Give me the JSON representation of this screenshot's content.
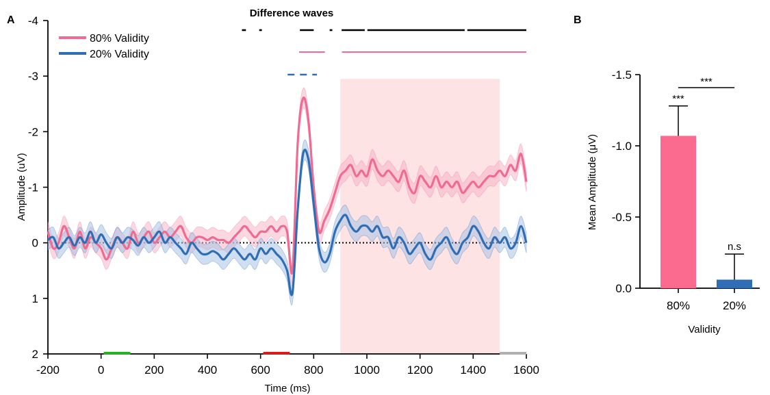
{
  "colors": {
    "pink": "#f06a92",
    "pink_band": "#f6b6c9",
    "blue": "#2f6db5",
    "blue_band": "#a9c3e6",
    "shade": "#fde3e4",
    "bar_pink": "#fb6a8f",
    "bar_blue": "#2f6db5",
    "green": "#22b222",
    "red": "#d81a1a",
    "gray": "#b0b0b0"
  },
  "chart_data": [
    {
      "panel_label": "A",
      "type": "line",
      "title": "Difference waves",
      "xlabel": "Time (ms)",
      "ylabel": "Amplitude (uV)",
      "xlim": [
        -200,
        1600
      ],
      "ylim_top_to_bottom": [
        -4,
        2
      ],
      "y_inverted": true,
      "xticks": [
        "-200",
        "0",
        "200",
        "400",
        "600",
        "800",
        "1000",
        "1200",
        "1400",
        "1600"
      ],
      "xtick_values": [
        -200,
        0,
        200,
        400,
        600,
        800,
        1000,
        1200,
        1400,
        1600
      ],
      "yticks": [
        "-4",
        "-3",
        "-2",
        "-1",
        "0",
        "1",
        "2"
      ],
      "ytick_values": [
        -4,
        -3,
        -2,
        -1,
        0,
        1,
        2
      ],
      "legend": [
        "80% Validity",
        "20% Validity"
      ],
      "legend_position": "top-left",
      "shaded_window_ms": [
        900,
        1500
      ],
      "time_markers": [
        {
          "color": "green",
          "range": [
            10,
            110
          ]
        },
        {
          "color": "red",
          "range": [
            610,
            710
          ]
        },
        {
          "color": "gray",
          "range": [
            1500,
            1600
          ]
        }
      ],
      "significance_bars": {
        "difference": [
          [
            530,
            545
          ],
          [
            595,
            605
          ],
          [
            748,
            800
          ],
          [
            860,
            870
          ],
          [
            905,
            992
          ],
          [
            1002,
            1368
          ],
          [
            1378,
            1600
          ]
        ],
        "pink": [
          [
            745,
            842
          ],
          [
            906,
            1600
          ]
        ],
        "blue_dashed": [
          [
            702,
            812
          ]
        ]
      },
      "series": [
        {
          "name": "80% Validity",
          "x": [
            -200,
            -180,
            -160,
            -140,
            -120,
            -100,
            -80,
            -60,
            -40,
            -20,
            0,
            20,
            40,
            60,
            80,
            100,
            120,
            140,
            160,
            180,
            200,
            220,
            240,
            260,
            280,
            300,
            320,
            340,
            360,
            380,
            400,
            420,
            440,
            460,
            480,
            500,
            520,
            540,
            560,
            580,
            600,
            620,
            640,
            660,
            680,
            700,
            720,
            740,
            760,
            780,
            800,
            820,
            840,
            860,
            880,
            900,
            920,
            940,
            960,
            980,
            1000,
            1020,
            1040,
            1060,
            1080,
            1100,
            1120,
            1140,
            1160,
            1180,
            1200,
            1220,
            1240,
            1260,
            1280,
            1300,
            1320,
            1340,
            1360,
            1380,
            1400,
            1420,
            1440,
            1460,
            1480,
            1500,
            1520,
            1540,
            1560,
            1580,
            1600
          ],
          "y": [
            -0.2,
            0.1,
            0.0,
            -0.3,
            -0.1,
            0.1,
            -0.2,
            0.1,
            -0.1,
            0.0,
            0.1,
            0.3,
            0.1,
            -0.1,
            0.0,
            0.1,
            -0.2,
            0.0,
            -0.1,
            -0.2,
            0.0,
            -0.1,
            -0.2,
            -0.1,
            -0.2,
            -0.3,
            -0.1,
            0.0,
            -0.1,
            -0.1,
            -0.05,
            -0.1,
            -0.05,
            -0.05,
            0.0,
            -0.1,
            -0.2,
            -0.3,
            -0.2,
            -0.1,
            -0.2,
            -0.2,
            -0.3,
            -0.2,
            -0.3,
            -0.2,
            0.5,
            -1.8,
            -2.6,
            -2.2,
            -1.0,
            -0.2,
            -0.4,
            -0.6,
            -0.9,
            -1.2,
            -1.3,
            -1.4,
            -1.2,
            -1.3,
            -1.2,
            -1.5,
            -1.3,
            -1.2,
            -1.3,
            -1.2,
            -1.1,
            -1.3,
            -1.0,
            -0.9,
            -1.2,
            -1.1,
            -1.0,
            -1.2,
            -1.0,
            -1.1,
            -1.0,
            -1.1,
            -0.9,
            -1.0,
            -1.1,
            -1.0,
            -1.1,
            -1.2,
            -1.2,
            -1.3,
            -1.2,
            -1.4,
            -1.3,
            -1.6,
            -1.1
          ]
        },
        {
          "name": "20% Validity",
          "x": [
            -200,
            -180,
            -160,
            -140,
            -120,
            -100,
            -80,
            -60,
            -40,
            -20,
            0,
            20,
            40,
            60,
            80,
            100,
            120,
            140,
            160,
            180,
            200,
            220,
            240,
            260,
            280,
            300,
            320,
            340,
            360,
            380,
            400,
            420,
            440,
            460,
            480,
            500,
            520,
            540,
            560,
            580,
            600,
            620,
            640,
            660,
            680,
            700,
            720,
            740,
            760,
            780,
            800,
            820,
            840,
            860,
            880,
            900,
            920,
            940,
            960,
            980,
            1000,
            1020,
            1040,
            1060,
            1080,
            1100,
            1120,
            1140,
            1160,
            1180,
            1200,
            1220,
            1240,
            1260,
            1280,
            1300,
            1320,
            1340,
            1360,
            1380,
            1400,
            1420,
            1440,
            1460,
            1480,
            1500,
            1520,
            1540,
            1560,
            1580,
            1600
          ],
          "y": [
            -0.05,
            -0.1,
            0.1,
            0.0,
            -0.1,
            0.05,
            -0.1,
            0.0,
            -0.2,
            0.0,
            -0.15,
            0.0,
            0.1,
            -0.1,
            0.0,
            -0.1,
            -0.05,
            0.05,
            -0.1,
            0.0,
            -0.1,
            -0.2,
            0.0,
            -0.1,
            0.0,
            0.1,
            0.2,
            0.0,
            0.1,
            0.2,
            0.2,
            0.15,
            0.2,
            0.3,
            0.2,
            0.1,
            0.2,
            0.3,
            0.2,
            0.3,
            0.1,
            0.2,
            0.1,
            0.2,
            0.3,
            0.5,
            0.9,
            -0.6,
            -1.6,
            -1.5,
            -0.7,
            0.1,
            0.35,
            0.2,
            -0.2,
            -0.4,
            -0.5,
            -0.3,
            -0.2,
            -0.3,
            -0.3,
            -0.2,
            -0.3,
            -0.1,
            -0.1,
            0.1,
            -0.1,
            0.0,
            0.2,
            0.1,
            0.0,
            0.2,
            0.3,
            0.1,
            0.0,
            -0.1,
            0.1,
            0.2,
            0.0,
            -0.1,
            -0.3,
            -0.2,
            0.0,
            0.1,
            -0.1,
            0.0,
            -0.1,
            0.1,
            0.0,
            -0.3,
            0.0
          ]
        }
      ]
    },
    {
      "panel_label": "B",
      "type": "bar",
      "xlabel": "Validity",
      "ylabel": "Mean Amplitude (μV)",
      "ylim_top_to_bottom": [
        -1.5,
        0.0
      ],
      "y_inverted": true,
      "yticks": [
        "-1.5",
        "-1.0",
        "-0.5",
        "0.0"
      ],
      "ytick_values": [
        -1.5,
        -1.0,
        -0.5,
        0.0
      ],
      "categories": [
        "80%",
        "20%"
      ],
      "values": [
        -1.07,
        -0.06
      ],
      "errors": [
        0.21,
        0.18
      ],
      "labels_above": [
        "***",
        "n.s"
      ],
      "comparison_label": "***"
    }
  ]
}
